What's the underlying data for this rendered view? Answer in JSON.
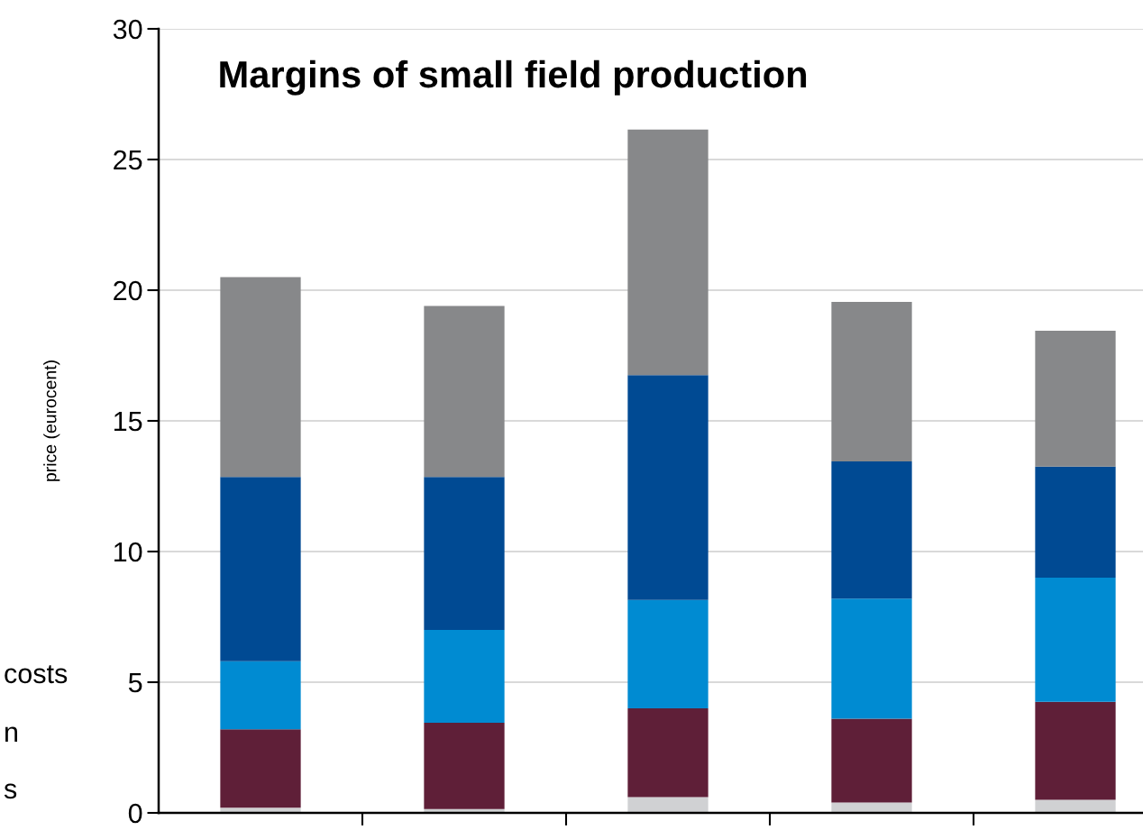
{
  "chart_data": {
    "type": "bar",
    "title": "Margins of small field production",
    "ylabel": "price (eurocent)",
    "categories": [
      null,
      null,
      null,
      null,
      null
    ],
    "stacked": true,
    "series": [
      {
        "color": "#d0d1d3",
        "values": [
          0.2,
          0.15,
          0.6,
          0.4,
          0.5
        ]
      },
      {
        "color": "#5f1f38",
        "values": [
          3.0,
          3.3,
          3.4,
          3.2,
          3.75
        ]
      },
      {
        "color": "#008bd2",
        "values": [
          2.6,
          3.55,
          4.15,
          4.6,
          4.75
        ]
      },
      {
        "color": "#004a93",
        "values": [
          7.05,
          5.85,
          8.6,
          5.25,
          4.25
        ]
      },
      {
        "color": "#87888a",
        "values": [
          7.65,
          6.55,
          9.4,
          6.1,
          5.2
        ]
      }
    ],
    "ylim": [
      0,
      30
    ],
    "yticks": [
      0,
      5,
      10,
      15,
      20,
      25,
      30
    ],
    "grid": "y",
    "annotations": [
      "costs",
      "n",
      "s"
    ]
  }
}
